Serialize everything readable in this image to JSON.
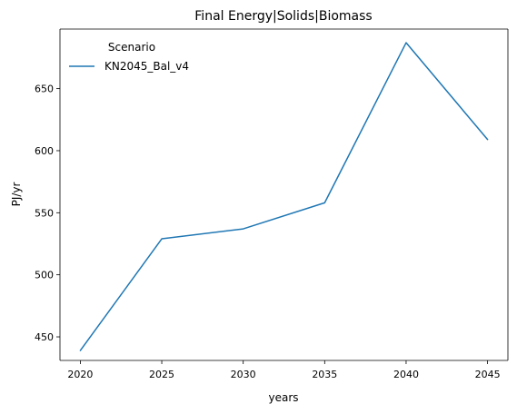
{
  "chart_data": {
    "type": "line",
    "title": "Final Energy|Solids|Biomass",
    "xlabel": "years",
    "ylabel": "PJ/yr",
    "x": [
      2020,
      2025,
      2030,
      2035,
      2040,
      2045
    ],
    "xticks": [
      2020,
      2025,
      2030,
      2035,
      2040,
      2045
    ],
    "yticks": [
      450,
      500,
      550,
      600,
      650
    ],
    "xlim": [
      2018.75,
      2046.25
    ],
    "ylim": [
      431,
      698
    ],
    "grid": false,
    "legend": {
      "title": "Scenario",
      "placement": "top-left"
    },
    "series": [
      {
        "name": "KN2045_Bal_v4",
        "color": "#1f77b4",
        "values": [
          439,
          529,
          537,
          558,
          687,
          609
        ]
      }
    ]
  }
}
